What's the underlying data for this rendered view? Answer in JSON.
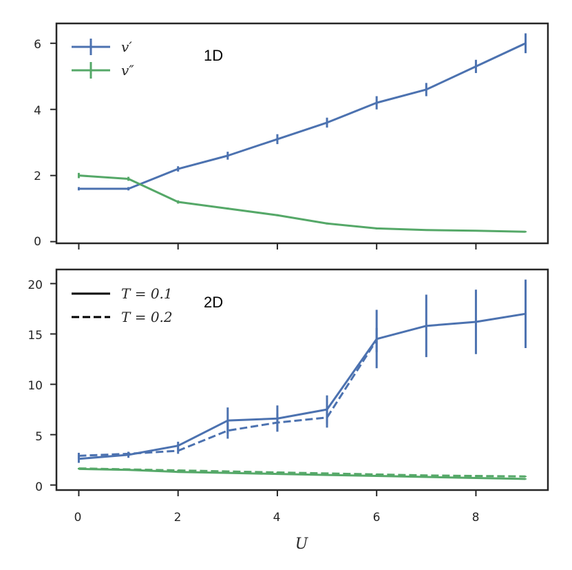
{
  "colors": {
    "v_prime": "#4c72b0",
    "v_double_prime": "#55a868",
    "frame": "#262626",
    "legend_line": "#000000"
  },
  "chart_data": [
    {
      "type": "line",
      "panel_label": "1D",
      "xlabel": "",
      "ylabel": "",
      "xlim": [
        -0.45,
        9.45
      ],
      "ylim": [
        -0.05,
        6.6
      ],
      "xticks": [
        0,
        2,
        4,
        6,
        8
      ],
      "yticks": [
        0,
        2,
        4,
        6
      ],
      "ytick_labels": [
        "0",
        "2",
        "4",
        "6"
      ],
      "legend": {
        "position": "top-left",
        "entries": [
          "v′",
          "v″"
        ]
      },
      "series": [
        {
          "name": "v′",
          "color_key": "v_prime",
          "style": "solid",
          "x": [
            0,
            1,
            2,
            3,
            4,
            5,
            6,
            7,
            8,
            9
          ],
          "y": [
            1.6,
            1.6,
            2.2,
            2.6,
            3.1,
            3.6,
            4.2,
            4.6,
            5.3,
            6.0
          ],
          "err": [
            0.05,
            0.05,
            0.08,
            0.12,
            0.15,
            0.15,
            0.2,
            0.2,
            0.2,
            0.3
          ]
        },
        {
          "name": "v″",
          "color_key": "v_double_prime",
          "style": "solid",
          "x": [
            0,
            1,
            2,
            3,
            4,
            5,
            6,
            7,
            8,
            9
          ],
          "y": [
            2.0,
            1.9,
            1.2,
            1.0,
            0.8,
            0.55,
            0.4,
            0.35,
            0.33,
            0.3
          ],
          "err": [
            0.08,
            0.06,
            0.05,
            0.03,
            0.03,
            0.03,
            0.03,
            0.02,
            0.02,
            0.02
          ]
        }
      ]
    },
    {
      "type": "line",
      "panel_label": "2D",
      "xlabel": "U",
      "ylabel": "",
      "xlim": [
        -0.45,
        9.45
      ],
      "ylim": [
        -0.5,
        21.4
      ],
      "xticks": [
        0,
        2,
        4,
        6,
        8
      ],
      "xtick_labels": [
        "0",
        "2",
        "4",
        "6",
        "8"
      ],
      "yticks": [
        0,
        5,
        10,
        15,
        20
      ],
      "ytick_labels": [
        "0",
        "5",
        "10",
        "15",
        "20"
      ],
      "legend": {
        "position": "top-left",
        "entries": [
          "T = 0.1",
          "T = 0.2"
        ]
      },
      "series": [
        {
          "name": "v′ (T = 0.1)",
          "color_key": "v_prime",
          "style": "solid",
          "x": [
            0,
            1,
            2,
            3,
            4,
            5,
            6,
            7,
            8,
            9
          ],
          "y": [
            2.6,
            3.0,
            3.9,
            6.4,
            6.6,
            7.5,
            14.5,
            15.8,
            16.2,
            17.0
          ],
          "err": [
            0.4,
            0.3,
            0.4,
            1.3,
            1.3,
            1.4,
            2.9,
            3.1,
            3.2,
            3.4
          ]
        },
        {
          "name": "v′ (T = 0.2)",
          "color_key": "v_prime",
          "style": "dashed",
          "x": [
            0,
            1,
            2,
            3,
            4,
            5,
            6
          ],
          "y": [
            2.9,
            3.1,
            3.4,
            5.4,
            6.2,
            6.7,
            14.4
          ],
          "err": [
            0.3,
            0.2,
            0.3,
            0.8,
            0.9,
            1.0,
            1.2
          ]
        },
        {
          "name": "v″ (T = 0.1)",
          "color_key": "v_double_prime",
          "style": "solid",
          "x": [
            0,
            1,
            2,
            3,
            4,
            5,
            6,
            7,
            8,
            9
          ],
          "y": [
            1.6,
            1.5,
            1.3,
            1.2,
            1.1,
            1.0,
            0.9,
            0.8,
            0.7,
            0.6
          ],
          "err": [
            0.05,
            0.05,
            0.05,
            0.05,
            0.05,
            0.05,
            0.05,
            0.05,
            0.05,
            0.05
          ]
        },
        {
          "name": "v″ (T = 0.2)",
          "color_key": "v_double_prime",
          "style": "dashed",
          "x": [
            0,
            1,
            2,
            3,
            4,
            5,
            6,
            7,
            8,
            9
          ],
          "y": [
            1.65,
            1.55,
            1.45,
            1.35,
            1.25,
            1.15,
            1.05,
            0.95,
            0.9,
            0.85
          ],
          "err": [
            0.05,
            0.05,
            0.05,
            0.05,
            0.05,
            0.05,
            0.05,
            0.05,
            0.05,
            0.05
          ]
        }
      ]
    }
  ]
}
